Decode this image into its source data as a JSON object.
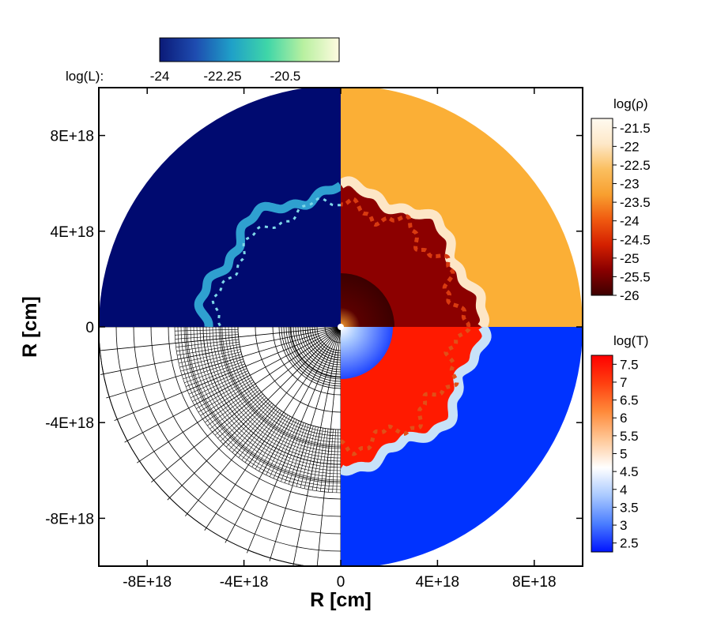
{
  "chart_data": {
    "type": "heatmap",
    "title": "",
    "xlabel": "R [cm]",
    "ylabel": "R [cm]",
    "xlim": [
      -1e+19,
      1e+19
    ],
    "ylim": [
      -1e+19,
      1e+19
    ],
    "x_ticks": [
      -8e+18,
      -4e+18,
      0,
      4e+18,
      8e+18
    ],
    "y_ticks": [
      8e+18,
      4e+18,
      0,
      -4e+18,
      -8e+18
    ],
    "x_tick_labels": [
      "-8E+18",
      "-4E+18",
      "0",
      "4E+18",
      "8E+18"
    ],
    "y_tick_labels": [
      "8E+18",
      "4E+18",
      "0",
      "-4E+18",
      "-8E+18"
    ],
    "outer_radius_cm": 1e+19,
    "quadrants": [
      {
        "name": "top-left",
        "field": "log(L)",
        "background_value": -24
      },
      {
        "name": "top-right",
        "field": "log(rho)",
        "ambient_value": -22.5,
        "bubble_value": -25.5
      },
      {
        "name": "bottom-left",
        "field": "computational grid"
      },
      {
        "name": "bottom-right",
        "field": "log(T)",
        "ambient_value": 2.5,
        "bubble_value": 7.5
      }
    ],
    "colorbars": [
      {
        "id": "luminosity",
        "title": "log(L):",
        "min": -24,
        "max": -19,
        "tick_labels": [
          "-24",
          "-22.25",
          "-20.5"
        ],
        "tick_values": [
          -24,
          -22.25,
          -20.5
        ],
        "colormap": [
          "#0b1a78",
          "#1e4cb0",
          "#1fa0c8",
          "#3fd6a8",
          "#b8f0a0",
          "#fffbe0"
        ]
      },
      {
        "id": "density",
        "title": "log(ρ)",
        "min": -26,
        "max": -21.25,
        "tick_labels": [
          "-21.5",
          "-22",
          "-22.5",
          "-23",
          "-23.5",
          "-24",
          "-24.5",
          "-25",
          "-25.5",
          "-26"
        ],
        "tick_values": [
          -21.5,
          -22,
          -22.5,
          -23,
          -23.5,
          -24,
          -24.5,
          -25,
          -25.5,
          -26
        ],
        "colormap": [
          "#3d0000",
          "#8a0000",
          "#d42000",
          "#f05a10",
          "#f8a030",
          "#fbbf60",
          "#fde8c8",
          "#fffaf0"
        ]
      },
      {
        "id": "temperature",
        "title": "log(T)",
        "min": 2.25,
        "max": 7.75,
        "tick_labels": [
          "7.5",
          "7",
          "6.5",
          "6",
          "5.5",
          "5",
          "4.5",
          "4",
          "3.5",
          "3",
          "2.5"
        ],
        "tick_values": [
          7.5,
          7,
          6.5,
          6,
          5.5,
          5,
          4.5,
          4,
          3.5,
          3,
          2.5
        ],
        "colormap": [
          "#0014ff",
          "#4a7dff",
          "#a9c9ff",
          "#ffffff",
          "#ffc898",
          "#ff8a3a",
          "#ff4010",
          "#ff0000"
        ]
      }
    ]
  },
  "colors": {
    "luminosity_background": "#000a70",
    "luminosity_shell": "#2fa0d0",
    "density_ambient": "#fbaf36",
    "density_bubble": "#8c0000",
    "density_shell": "#fde6c6",
    "temperature_ambient": "#0033ff",
    "temperature_bubble": "#ff1a00",
    "temperature_shell": "#c8e2f8",
    "grid_lines": "#000000"
  }
}
